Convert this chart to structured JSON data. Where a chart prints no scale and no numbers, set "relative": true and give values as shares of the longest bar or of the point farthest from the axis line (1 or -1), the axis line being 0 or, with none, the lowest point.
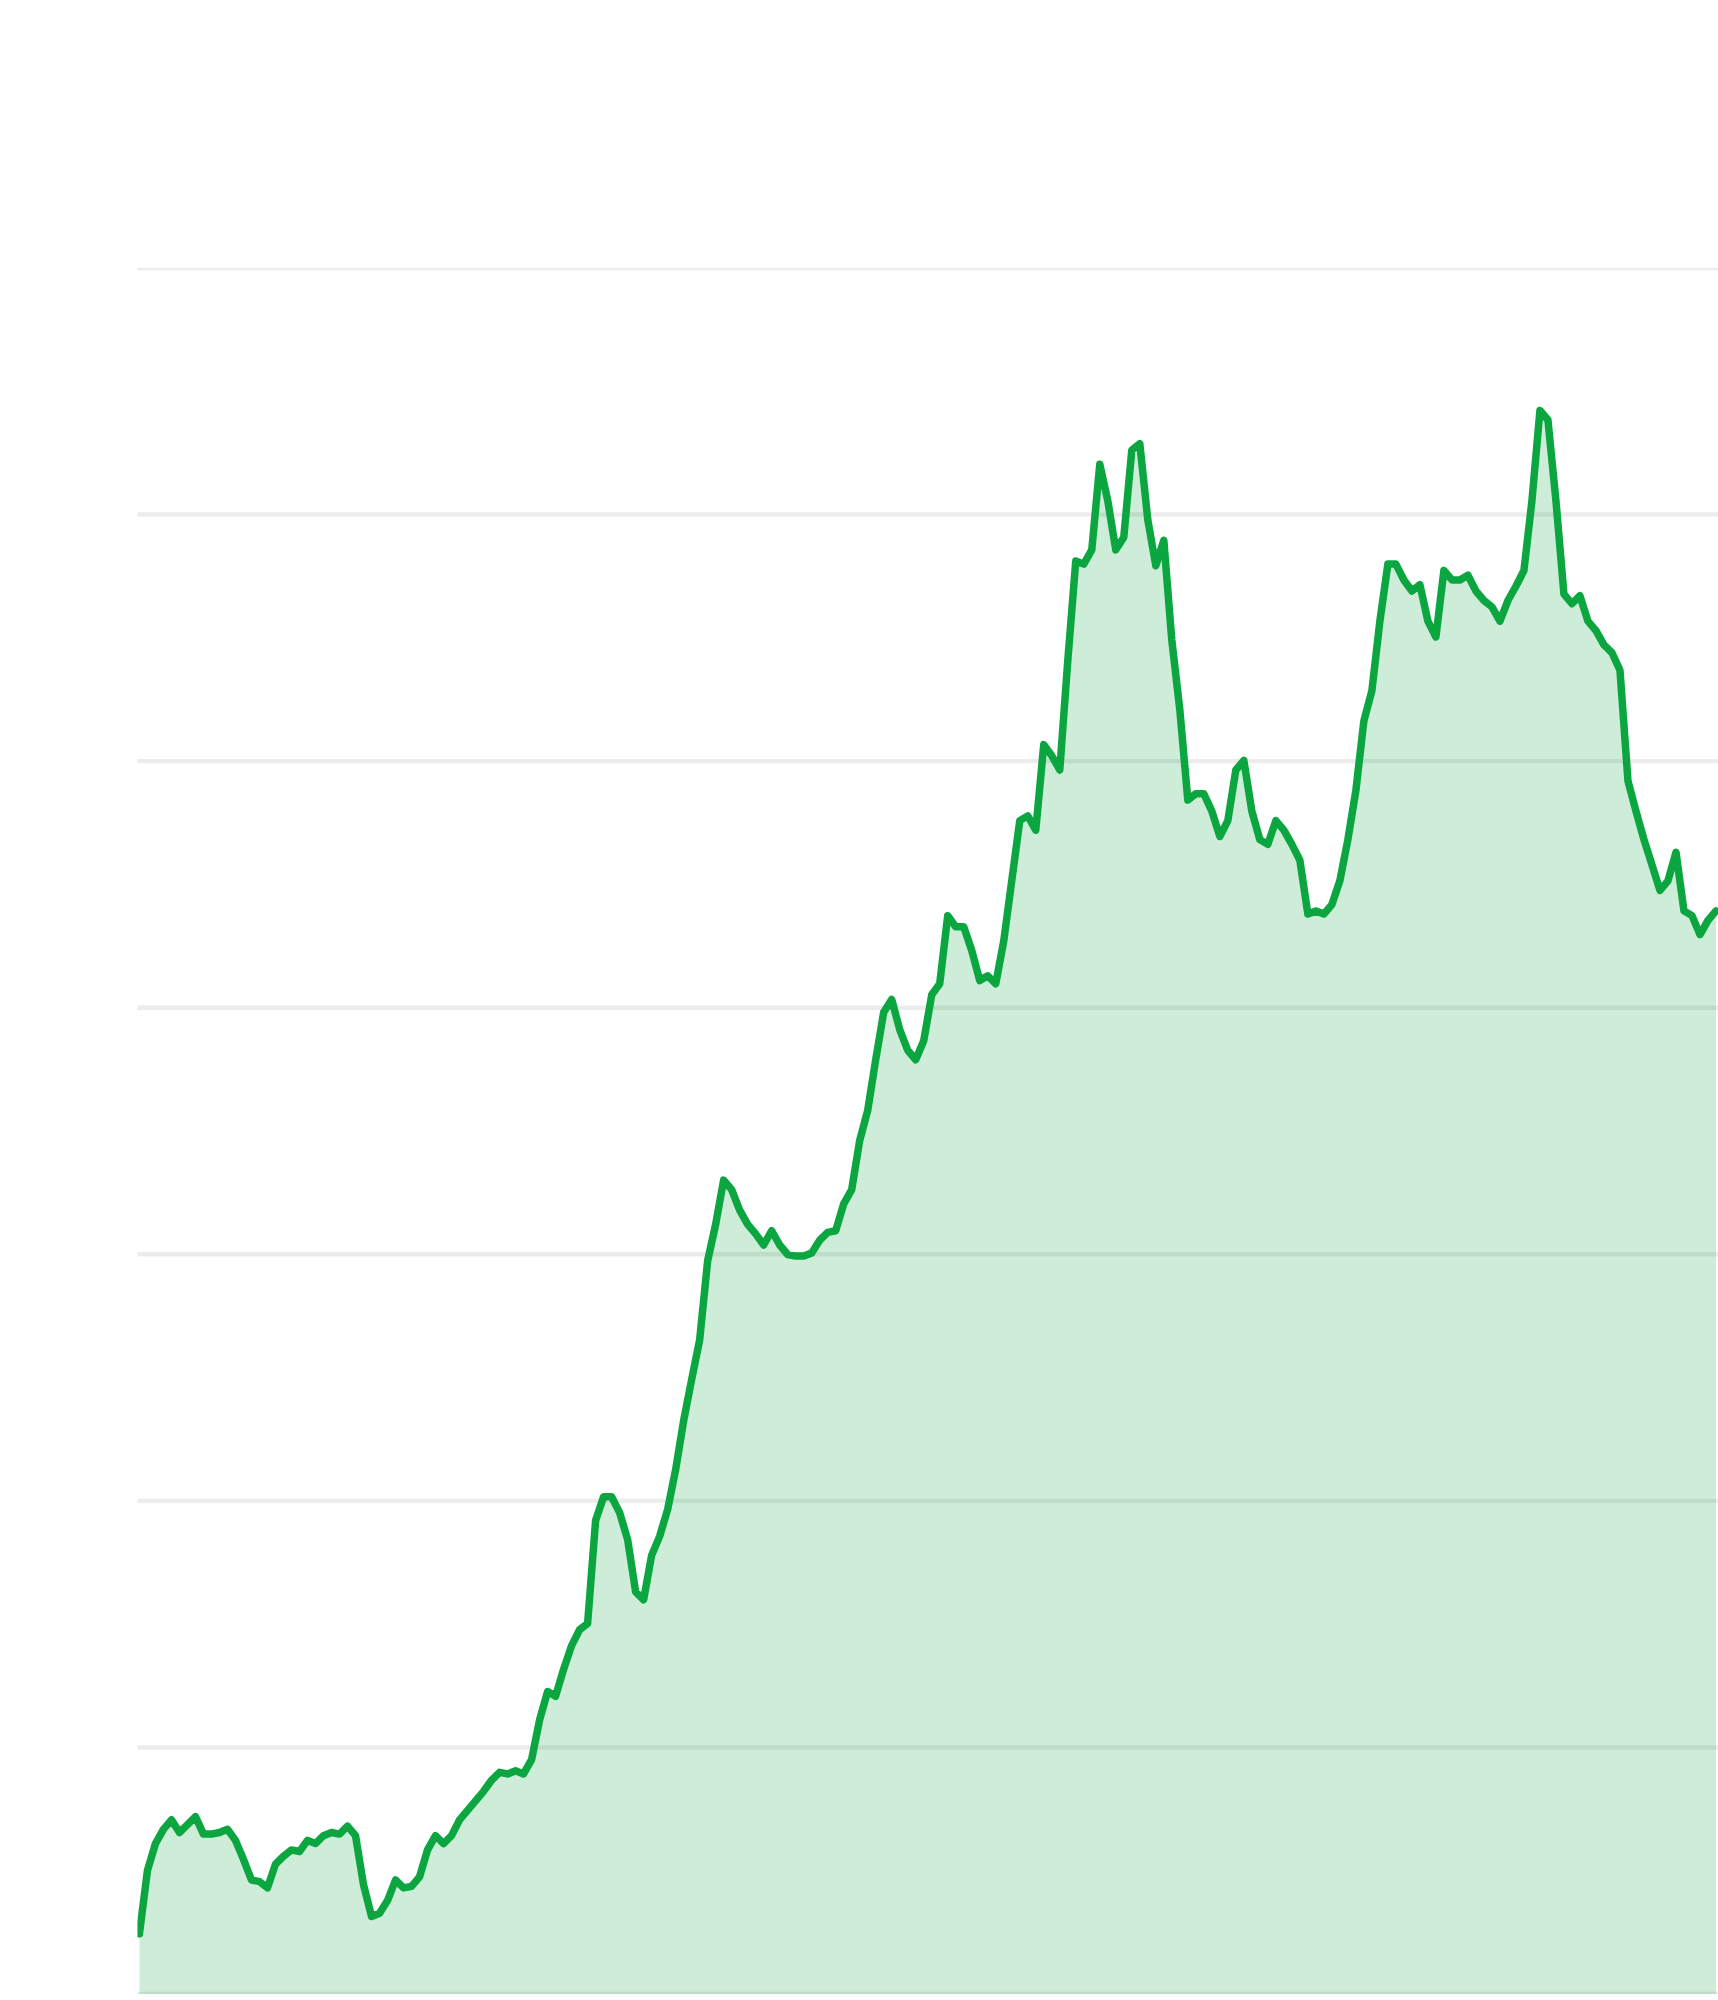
{
  "chart_data": {
    "type": "area",
    "relative": true,
    "grid": "y",
    "color": "#0ca641",
    "categories": [
      null,
      null,
      null,
      null,
      null,
      null,
      null,
      null,
      null,
      null,
      null,
      null,
      null,
      null,
      null,
      null,
      null,
      null,
      null,
      null,
      null,
      null,
      null,
      null,
      null,
      null,
      null,
      null,
      null,
      null,
      null,
      null,
      null,
      null,
      null,
      null,
      null,
      null,
      null,
      null,
      null,
      null,
      null,
      null,
      null,
      null,
      null,
      null,
      null,
      null,
      null,
      null,
      null,
      null,
      null,
      null,
      null,
      null,
      null,
      null,
      null,
      null,
      null,
      null,
      null,
      null,
      null,
      null,
      null,
      null,
      null,
      null,
      null,
      null,
      null,
      null,
      null,
      null,
      null,
      null,
      null,
      null,
      null,
      null,
      null,
      null,
      null,
      null,
      null,
      null,
      null,
      null,
      null,
      null,
      null,
      null,
      null,
      null,
      null,
      null,
      null,
      null,
      null,
      null,
      null,
      null,
      null,
      null,
      null,
      null,
      null,
      null,
      null,
      null,
      null,
      null,
      null,
      null,
      null,
      null,
      null,
      null,
      null,
      null,
      null,
      null,
      null,
      null,
      null,
      null,
      null,
      null,
      null,
      null,
      null,
      null,
      null,
      null,
      null,
      null,
      null,
      null,
      null,
      null,
      null,
      null,
      null,
      null,
      null,
      null,
      null,
      null,
      null,
      null,
      null,
      null,
      null,
      null,
      null,
      null,
      null,
      null,
      null,
      null,
      null,
      null,
      null,
      null,
      null,
      null,
      null,
      null,
      null,
      null,
      null,
      null,
      null,
      null,
      null,
      null,
      null,
      null,
      null,
      null,
      null,
      null,
      null,
      null,
      null,
      null,
      null,
      null,
      null,
      null,
      null,
      null,
      null,
      null
    ],
    "values": [
      0.038,
      0.078,
      0.095,
      0.104,
      0.11,
      0.102,
      0.107,
      0.112,
      0.101,
      0.101,
      0.102,
      0.104,
      0.097,
      0.085,
      0.072,
      0.071,
      0.067,
      0.082,
      0.087,
      0.091,
      0.09,
      0.097,
      0.095,
      0.1,
      0.102,
      0.101,
      0.106,
      0.1,
      0.069,
      0.049,
      0.051,
      0.059,
      0.072,
      0.067,
      0.068,
      0.074,
      0.091,
      0.1,
      0.095,
      0.1,
      0.11,
      0.116,
      0.122,
      0.128,
      0.135,
      0.14,
      0.139,
      0.141,
      0.139,
      0.148,
      0.173,
      0.191,
      0.188,
      0.205,
      0.22,
      0.23,
      0.234,
      0.299,
      0.314,
      0.314,
      0.304,
      0.287,
      0.254,
      0.249,
      0.277,
      0.289,
      0.306,
      0.331,
      0.362,
      0.388,
      0.413,
      0.463,
      0.486,
      0.514,
      0.508,
      0.495,
      0.486,
      0.48,
      0.473,
      0.482,
      0.473,
      0.467,
      0.466,
      0.466,
      0.468,
      0.476,
      0.481,
      0.482,
      0.499,
      0.508,
      0.539,
      0.558,
      0.59,
      0.62,
      0.628,
      0.609,
      0.596,
      0.59,
      0.602,
      0.631,
      0.638,
      0.681,
      0.674,
      0.674,
      0.659,
      0.64,
      0.643,
      0.638,
      0.665,
      0.703,
      0.741,
      0.744,
      0.735,
      0.789,
      0.782,
      0.773,
      0.842,
      0.905,
      0.903,
      0.912,
      0.966,
      0.943,
      0.912,
      0.92,
      0.975,
      0.979,
      0.931,
      0.902,
      0.918,
      0.855,
      0.811,
      0.754,
      0.758,
      0.758,
      0.747,
      0.731,
      0.741,
      0.773,
      0.779,
      0.747,
      0.729,
      0.726,
      0.741,
      0.735,
      0.726,
      0.716,
      0.682,
      0.684,
      0.682,
      0.688,
      0.703,
      0.729,
      0.76,
      0.804,
      0.823,
      0.867,
      0.903,
      0.903,
      0.893,
      0.886,
      0.89,
      0.867,
      0.857,
      0.899,
      0.893,
      0.893,
      0.896,
      0.886,
      0.88,
      0.876,
      0.867,
      0.88,
      0.889,
      0.899,
      0.943,
      1,
      0.994,
      0.943,
      0.884,
      0.878,
      0.883,
      0.867,
      0.861,
      0.852,
      0.847,
      0.836,
      0.766,
      0.747,
      0.729,
      0.713,
      0.697,
      0.703,
      0.721,
      0.684,
      0.681,
      0.669,
      0.678,
      0.684
    ]
  }
}
